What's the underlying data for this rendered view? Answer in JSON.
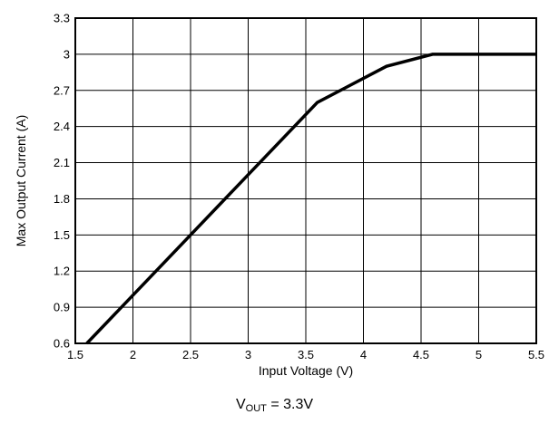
{
  "chart_data": {
    "type": "line",
    "xlabel": "Input Voltage (V)",
    "ylabel": "Max Output Current (A)",
    "xlim": [
      1.5,
      5.5
    ],
    "ylim": [
      0.6,
      3.3
    ],
    "xticks": [
      "1.5",
      "2",
      "2.5",
      "3",
      "3.5",
      "4",
      "4.5",
      "5",
      "5.5"
    ],
    "yticks": [
      "0.6",
      "0.9",
      "1.2",
      "1.5",
      "1.8",
      "2.1",
      "2.4",
      "2.7",
      "3",
      "3.3"
    ],
    "grid": true,
    "series": [
      {
        "x": [
          1.6,
          3.6,
          4.2,
          4.6,
          5.5
        ],
        "y": [
          0.6,
          2.6,
          2.9,
          3.0,
          3.0
        ]
      }
    ],
    "caption": {
      "main": "V",
      "sub": "OUT",
      "rest": " = 3.3V"
    },
    "colors": {
      "line": "#000000",
      "grid": "#000000"
    }
  }
}
